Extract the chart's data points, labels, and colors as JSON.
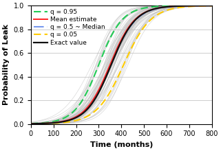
{
  "title": "",
  "xlabel": "Time (months)",
  "ylabel": "Probability of Leak",
  "xlim": [
    0,
    800
  ],
  "ylim": [
    0,
    1
  ],
  "xticks": [
    0,
    100,
    200,
    300,
    400,
    500,
    600,
    700,
    800
  ],
  "yticks": [
    0.0,
    0.2,
    0.4,
    0.6,
    0.8,
    1.0
  ],
  "mean_mu": 350,
  "mean_sigma": 55,
  "q95_mu": 300,
  "q95_sigma": 52,
  "q50_mu": 353,
  "q50_sigma": 56,
  "q05_mu": 410,
  "q05_sigma": 60,
  "exact_mu": 355,
  "exact_sigma": 54,
  "n_samples": 60,
  "sample_mu_std": 35,
  "sample_sigma_std": 8,
  "sample_color": "#c0c0c0",
  "sample_alpha": 0.6,
  "sample_lw": 0.5,
  "q95_color": "#22cc55",
  "mean_color": "#ff2222",
  "q50_color": "#7799ee",
  "q05_color": "#ffcc00",
  "exact_color": "#111111",
  "legend_fontsize": 6.5,
  "axis_fontsize": 8,
  "tick_fontsize": 7,
  "figsize": [
    3.21,
    2.2
  ],
  "dpi": 100
}
